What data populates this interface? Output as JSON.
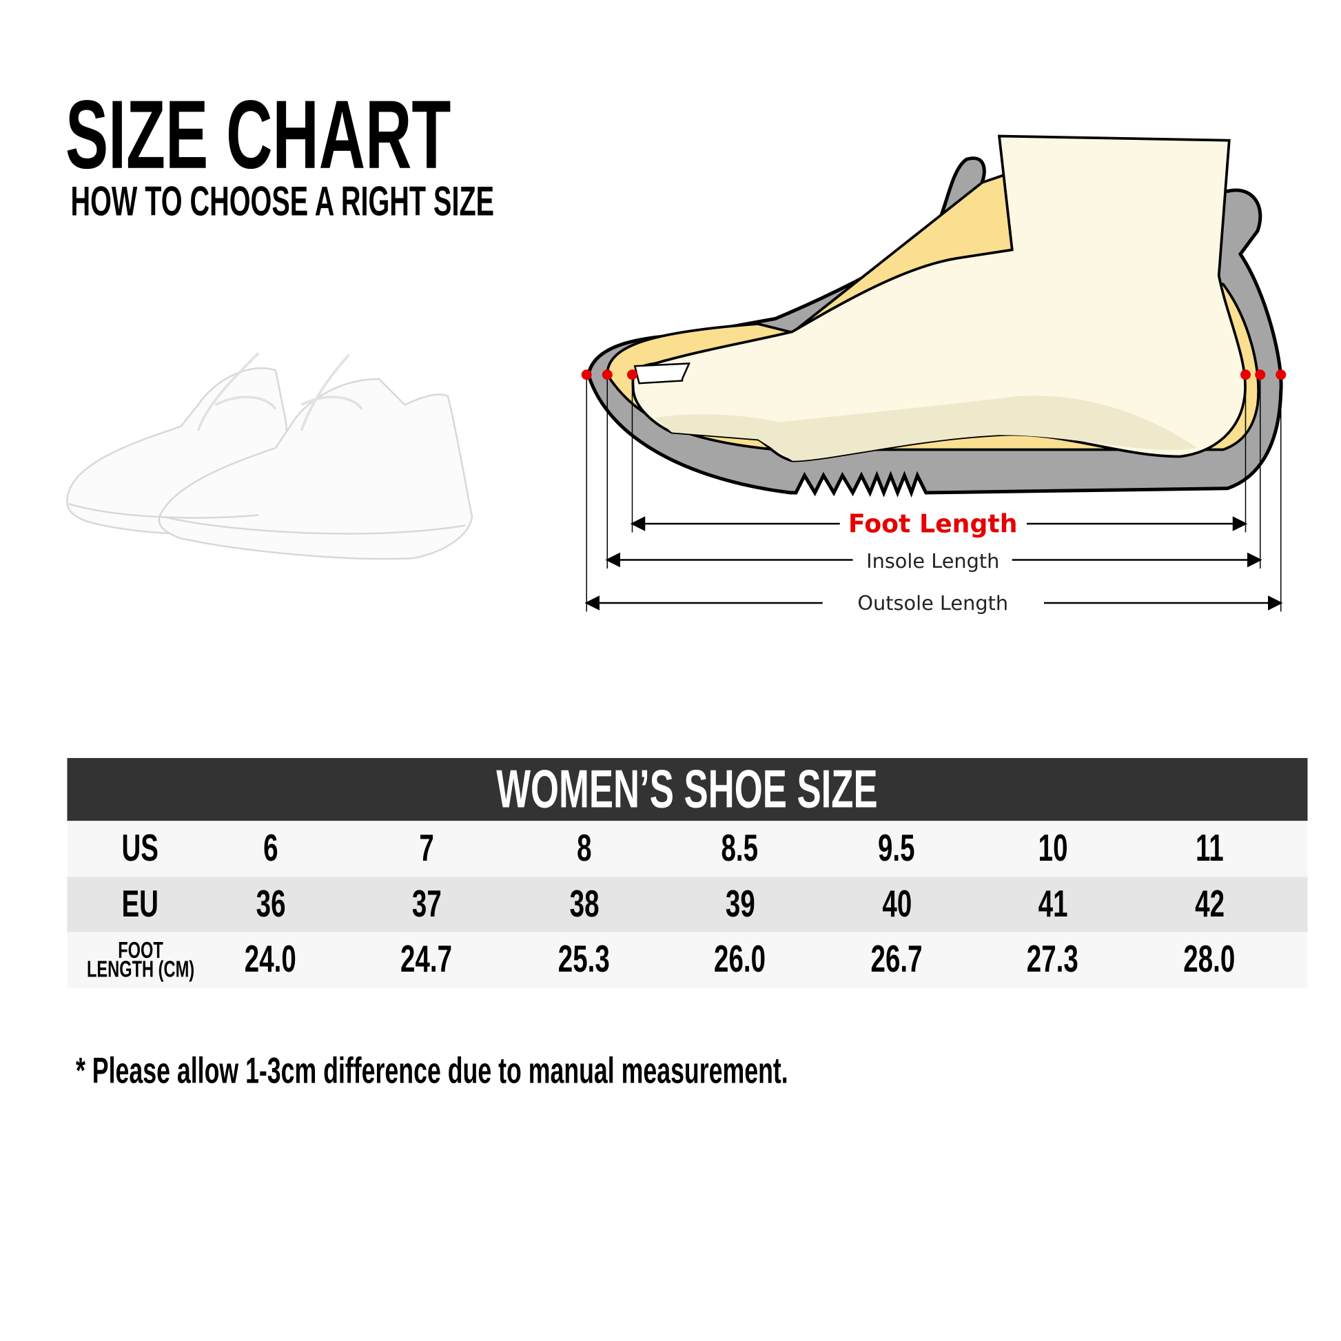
{
  "header": {
    "title": "SIZE CHART",
    "subtitle": "HOW TO CHOOSE A RIGHT SIZE"
  },
  "diagram": {
    "foot_length": "Foot Length",
    "insole_length": "Insole Length",
    "outsole_length": "Outsole Length",
    "highlight_color": "#e60000",
    "shoe_gray": "#a5a5a5",
    "insole_yellow": "#f9df8f",
    "foot_cream": "#fdf8e4"
  },
  "product_image": "white-knit-sneakers",
  "table": {
    "title": "WOMEN’S SHOE SIZE",
    "rows": [
      {
        "label": "US",
        "values": [
          "6",
          "7",
          "8",
          "8.5",
          "9.5",
          "10",
          "11"
        ]
      },
      {
        "label": "EU",
        "values": [
          "36",
          "37",
          "38",
          "39",
          "40",
          "41",
          "42"
        ]
      },
      {
        "label_line1": "FOOT",
        "label_line2": "LENGTH (CM)",
        "values": [
          "24.0",
          "24.7",
          "25.3",
          "26.0",
          "26.7",
          "27.3",
          "28.0"
        ]
      }
    ]
  },
  "note": "* Please allow 1-3cm difference due to manual measurement."
}
